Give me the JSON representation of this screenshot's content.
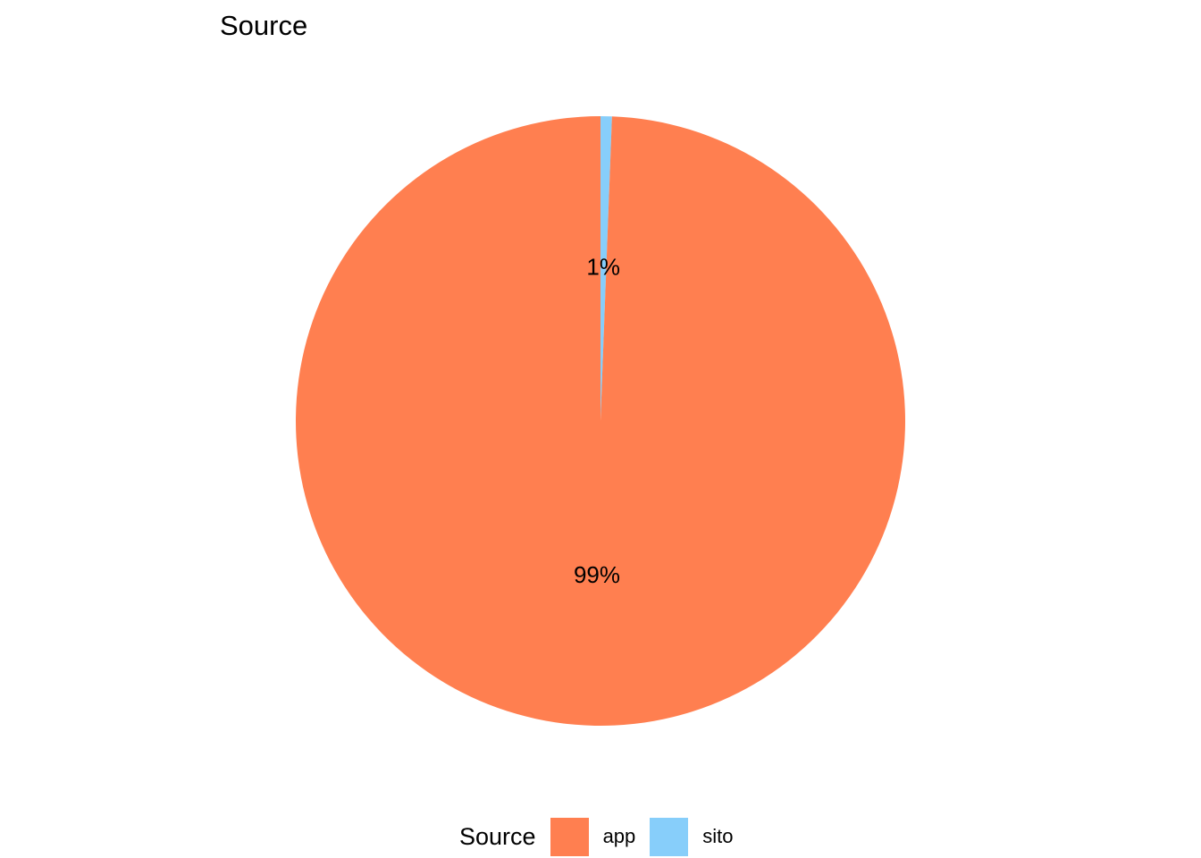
{
  "chart_data": {
    "type": "pie",
    "title": "Source",
    "legend_title": "Source",
    "legend_position": "bottom",
    "categories": [
      "app",
      "sito"
    ],
    "values": [
      99.4,
      0.6
    ],
    "labels": [
      "99%",
      "1%"
    ],
    "colors": [
      "#ff7f50",
      "#87cefa"
    ]
  }
}
